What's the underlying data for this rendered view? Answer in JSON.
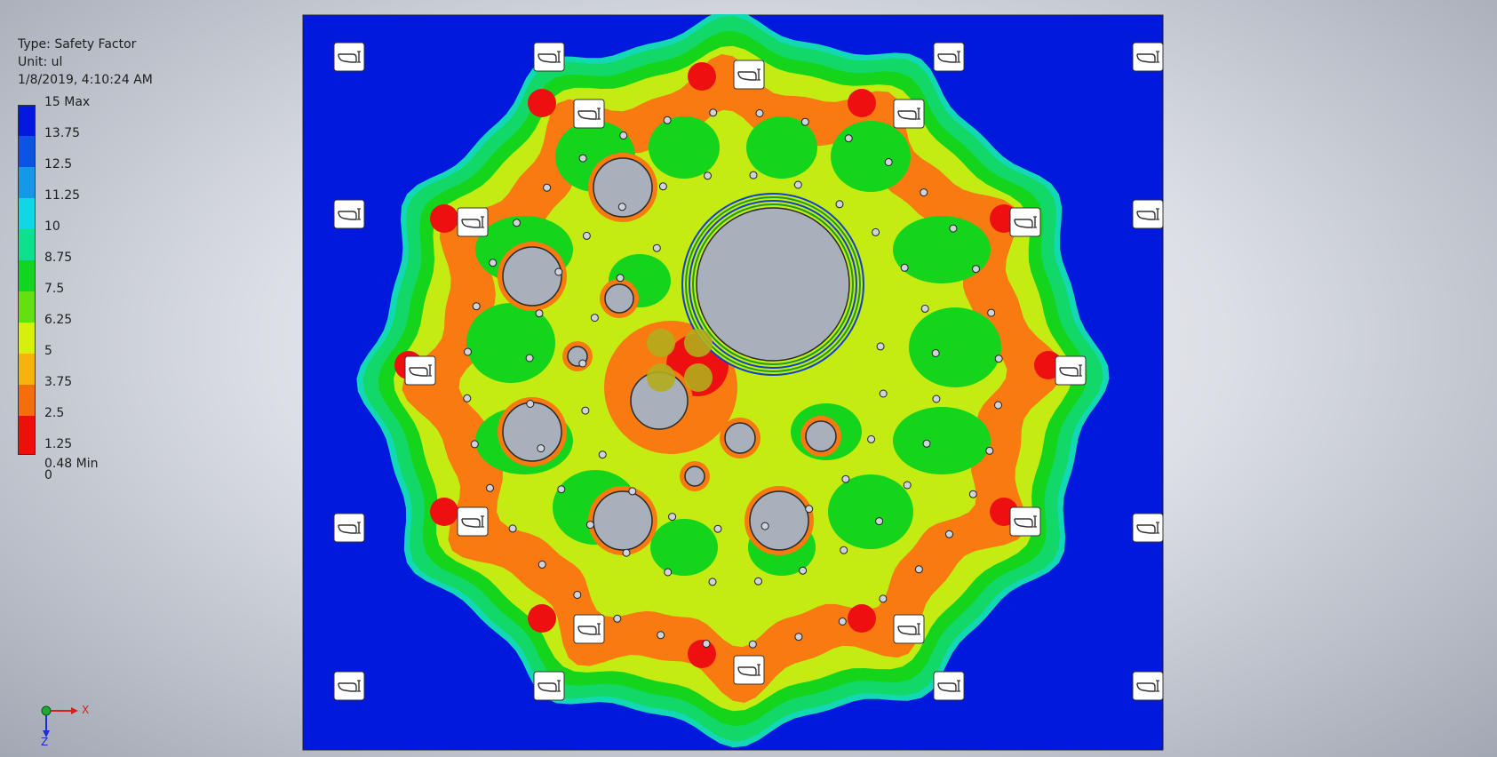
{
  "legend": {
    "type_label": "Type: Safety Factor",
    "unit_label": "Unit: ul",
    "timestamp": "1/8/2019, 4:10:24 AM",
    "ticks": [
      {
        "label": "15 Max",
        "value": 15
      },
      {
        "label": "13.75",
        "value": 13.75
      },
      {
        "label": "12.5",
        "value": 12.5
      },
      {
        "label": "11.25",
        "value": 11.25
      },
      {
        "label": "10",
        "value": 10
      },
      {
        "label": "8.75",
        "value": 8.75
      },
      {
        "label": "7.5",
        "value": 7.5
      },
      {
        "label": "6.25",
        "value": 6.25
      },
      {
        "label": "5",
        "value": 5
      },
      {
        "label": "3.75",
        "value": 3.75
      },
      {
        "label": "2.5",
        "value": 2.5
      },
      {
        "label": "1.25",
        "value": 1.25
      },
      {
        "label": "0.48 Min",
        "value": 0.48
      },
      {
        "label": "0",
        "value": 0
      }
    ],
    "band_colors": [
      "#0019dc",
      "#0a55e6",
      "#1398ea",
      "#12d6e6",
      "#0ee08e",
      "#10d620",
      "#64e00e",
      "#d8ee0e",
      "#f8b20e",
      "#f66e0a",
      "#ec100a",
      "#ec100a"
    ]
  },
  "axis_triad": {
    "x_label": "X",
    "z_label": "Z"
  },
  "model": {
    "name": "safety-factor-plate",
    "colors": {
      "plate": "#0019dc",
      "green_outer": "#12d868",
      "green": "#14d41c",
      "yellow_green": "#c4ec12",
      "orange": "#f87a10",
      "red": "#ee1010",
      "hole": "#a8b0bc",
      "olive": "#b2ac1c"
    }
  }
}
